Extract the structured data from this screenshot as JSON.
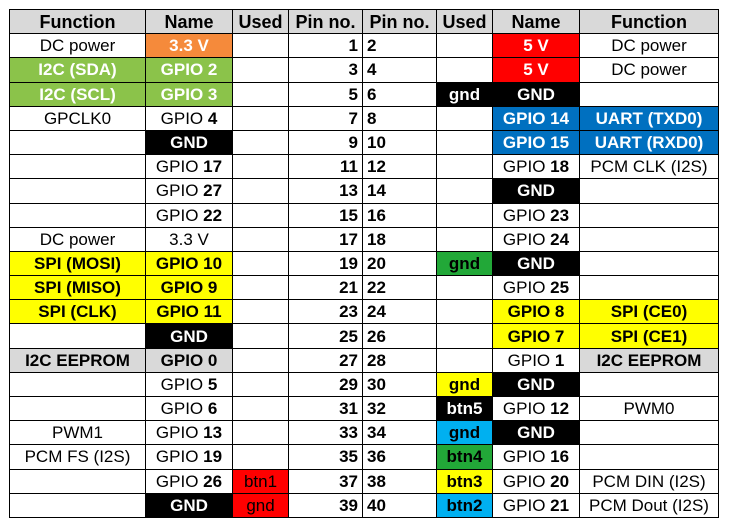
{
  "headers": [
    "Function",
    "Name",
    "Used",
    "Pin no.",
    "Pin no.",
    "Used",
    "Name",
    "Function"
  ],
  "colors": {
    "power_5v": "#ff0000",
    "power_3v3": "#f58a3b",
    "i2c": "#8bc34a",
    "gnd": "#000000",
    "uart": "#0070c0",
    "spi": "#ffff00",
    "eeprom": "#d9d9d9",
    "used_red": "#ff0000",
    "used_green": "#22a838",
    "used_blue": "#00b0f0",
    "used_yellow": "#ffff00",
    "used_black": "#000000"
  },
  "rows": [
    {
      "lf": "DC power",
      "lfs": "",
      "ln": "3.3 V",
      "lnb": "",
      "lns": "power3",
      "lu": "",
      "lus": "",
      "lp": "1",
      "rp": "2",
      "ru": "",
      "rus": "",
      "rn": "5 V",
      "rnb": "",
      "rns": "power5",
      "rf": "DC power",
      "rfs": ""
    },
    {
      "lf": "I2C (SDA)",
      "lfs": "i2c",
      "ln": "GPIO 2",
      "lnb": "",
      "lns": "i2c",
      "lu": "",
      "lus": "",
      "lp": "3",
      "rp": "4",
      "ru": "",
      "rus": "",
      "rn": "5 V",
      "rnb": "",
      "rns": "power5",
      "rf": "DC power",
      "rfs": ""
    },
    {
      "lf": "I2C (SCL)",
      "lfs": "i2c",
      "ln": "GPIO 3",
      "lnb": "",
      "lns": "i2c",
      "lu": "",
      "lus": "",
      "lp": "5",
      "rp": "6",
      "ru": "gnd",
      "rus": "black",
      "rn": "GND",
      "rnb": "",
      "rns": "gnd",
      "rf": "",
      "rfs": ""
    },
    {
      "lf": "GPCLK0",
      "lfs": "",
      "ln": "GPIO ",
      "lnb": "4",
      "lns": "",
      "lu": "",
      "lus": "",
      "lp": "7",
      "rp": "8",
      "ru": "",
      "rus": "",
      "rn": "GPIO 14",
      "rnb": "",
      "rns": "uart",
      "rf": "UART (TXD0)",
      "rfs": "uart"
    },
    {
      "lf": "",
      "lfs": "",
      "ln": "GND",
      "lnb": "",
      "lns": "gnd",
      "lu": "",
      "lus": "",
      "lp": "9",
      "rp": "10",
      "ru": "",
      "rus": "",
      "rn": "GPIO 15",
      "rnb": "",
      "rns": "uart",
      "rf": "UART (RXD0)",
      "rfs": "uart"
    },
    {
      "lf": "",
      "lfs": "",
      "ln": "GPIO ",
      "lnb": "17",
      "lns": "",
      "lu": "",
      "lus": "",
      "lp": "11",
      "rp": "12",
      "ru": "",
      "rus": "",
      "rn": "GPIO ",
      "rnb": "18",
      "rns": "",
      "rf": "PCM CLK (I2S)",
      "rfs": ""
    },
    {
      "lf": "",
      "lfs": "",
      "ln": "GPIO ",
      "lnb": "27",
      "lns": "",
      "lu": "",
      "lus": "",
      "lp": "13",
      "rp": "14",
      "ru": "",
      "rus": "",
      "rn": "GND",
      "rnb": "",
      "rns": "gnd",
      "rf": "",
      "rfs": ""
    },
    {
      "lf": "",
      "lfs": "",
      "ln": "GPIO ",
      "lnb": "22",
      "lns": "",
      "lu": "",
      "lus": "",
      "lp": "15",
      "rp": "16",
      "ru": "",
      "rus": "",
      "rn": "GPIO ",
      "rnb": "23",
      "rns": "",
      "rf": "",
      "rfs": ""
    },
    {
      "lf": "DC power",
      "lfs": "",
      "ln": "3.3 V",
      "lnb": "",
      "lns": "",
      "lu": "",
      "lus": "",
      "lp": "17",
      "rp": "18",
      "ru": "",
      "rus": "",
      "rn": "GPIO ",
      "rnb": "24",
      "rns": "",
      "rf": "",
      "rfs": ""
    },
    {
      "lf": "SPI (MOSI)",
      "lfs": "spi",
      "ln": "GPIO 10",
      "lnb": "",
      "lns": "spi",
      "lu": "",
      "lus": "",
      "lp": "19",
      "rp": "20",
      "ru": "gnd",
      "rus": "green",
      "rn": "GND",
      "rnb": "",
      "rns": "gnd",
      "rf": "",
      "rfs": ""
    },
    {
      "lf": "SPI (MISO)",
      "lfs": "spi",
      "ln": "GPIO 9",
      "lnb": "",
      "lns": "spi",
      "lu": "",
      "lus": "",
      "lp": "21",
      "rp": "22",
      "ru": "",
      "rus": "",
      "rn": "GPIO ",
      "rnb": "25",
      "rns": "",
      "rf": "",
      "rfs": ""
    },
    {
      "lf": "SPI (CLK)",
      "lfs": "spi",
      "ln": "GPIO 11",
      "lnb": "",
      "lns": "spi",
      "lu": "",
      "lus": "",
      "lp": "23",
      "rp": "24",
      "ru": "",
      "rus": "",
      "rn": "GPIO 8",
      "rnb": "",
      "rns": "spi",
      "rf": "SPI (CE0)",
      "rfs": "spi"
    },
    {
      "lf": "",
      "lfs": "",
      "ln": "GND",
      "lnb": "",
      "lns": "gnd",
      "lu": "",
      "lus": "",
      "lp": "25",
      "rp": "26",
      "ru": "",
      "rus": "",
      "rn": "GPIO 7",
      "rnb": "",
      "rns": "spi",
      "rf": "SPI (CE1)",
      "rfs": "spi"
    },
    {
      "lf": "I2C EEPROM",
      "lfs": "eeprom",
      "ln": "GPIO 0",
      "lnb": "",
      "lns": "eeprom",
      "lu": "",
      "lus": "",
      "lp": "27",
      "rp": "28",
      "ru": "",
      "rus": "",
      "rn": "GPIO ",
      "rnb": "1",
      "rns": "",
      "rf": "I2C EEPROM",
      "rfs": "eeprom"
    },
    {
      "lf": "",
      "lfs": "",
      "ln": "GPIO ",
      "lnb": "5",
      "lns": "",
      "lu": "",
      "lus": "",
      "lp": "29",
      "rp": "30",
      "ru": "gnd",
      "rus": "yellow",
      "rn": "GND",
      "rnb": "",
      "rns": "gnd",
      "rf": "",
      "rfs": ""
    },
    {
      "lf": "",
      "lfs": "",
      "ln": "GPIO ",
      "lnb": "6",
      "lns": "",
      "lu": "",
      "lus": "",
      "lp": "31",
      "rp": "32",
      "ru": "btn5",
      "rus": "black",
      "rn": "GPIO ",
      "rnb": "12",
      "rns": "",
      "rf": "PWM0",
      "rfs": ""
    },
    {
      "lf": "PWM1",
      "lfs": "",
      "ln": "GPIO ",
      "lnb": "13",
      "lns": "",
      "lu": "",
      "lus": "",
      "lp": "33",
      "rp": "34",
      "ru": "gnd",
      "rus": "blue",
      "rn": "GND",
      "rnb": "",
      "rns": "gnd",
      "rf": "",
      "rfs": ""
    },
    {
      "lf": "PCM FS (I2S)",
      "lfs": "",
      "ln": "GPIO ",
      "lnb": "19",
      "lns": "",
      "lu": "",
      "lus": "",
      "lp": "35",
      "rp": "36",
      "ru": "btn4",
      "rus": "green",
      "rn": "GPIO ",
      "rnb": "16",
      "rns": "",
      "rf": "",
      "rfs": ""
    },
    {
      "lf": "",
      "lfs": "",
      "ln": "GPIO ",
      "lnb": "26",
      "lns": "",
      "lu": "btn1",
      "lus": "red",
      "lp": "37",
      "rp": "38",
      "ru": "btn3",
      "rus": "yellow",
      "rn": "GPIO ",
      "rnb": "20",
      "rns": "",
      "rf": "PCM DIN (I2S)",
      "rfs": ""
    },
    {
      "lf": "",
      "lfs": "",
      "ln": "GND",
      "lnb": "",
      "lns": "gnd",
      "lu": "gnd",
      "lus": "red",
      "lp": "39",
      "rp": "40",
      "ru": "btn2",
      "rus": "blue",
      "rn": "GPIO ",
      "rnb": "21",
      "rns": "",
      "rf": "PCM Dout (I2S)",
      "rfs": ""
    }
  ]
}
